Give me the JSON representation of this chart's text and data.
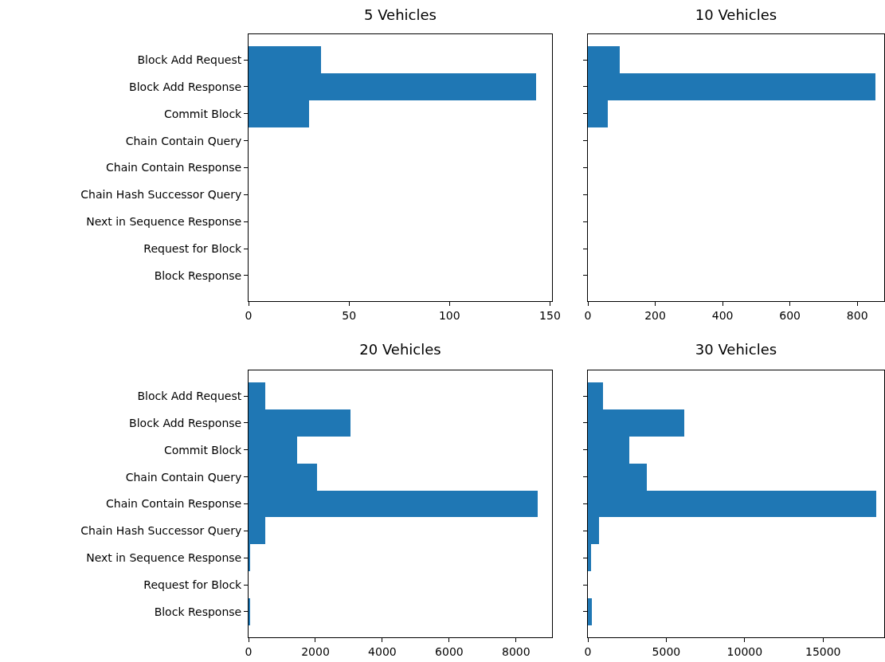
{
  "chart_data": [
    {
      "type": "bar",
      "orientation": "horizontal",
      "title": "5 Vehicles",
      "categories": [
        "Block Add Request",
        "Block Add Response",
        "Commit Block",
        "Chain Contain Query",
        "Chain Contain Response",
        "Chain Hash Successor Query",
        "Next in Sequence Response",
        "Request for Block",
        "Block Response"
      ],
      "values": [
        36,
        143,
        30,
        0,
        0,
        0,
        0,
        0,
        0
      ],
      "color": "#1f77b4",
      "xlim": [
        0,
        151
      ],
      "xticks": [
        0,
        50,
        100,
        150
      ]
    },
    {
      "type": "bar",
      "orientation": "horizontal",
      "title": "10 Vehicles",
      "categories": [
        null,
        null,
        null,
        null,
        null,
        null,
        null,
        null,
        null
      ],
      "values": [
        95,
        855,
        60,
        0,
        0,
        0,
        0,
        0,
        0
      ],
      "color": "#1f77b4",
      "xlim": [
        0,
        880
      ],
      "xticks": [
        0,
        200,
        400,
        600,
        800
      ]
    },
    {
      "type": "bar",
      "orientation": "horizontal",
      "title": "20 Vehicles",
      "categories": [
        "Block Add Request",
        "Block Add Response",
        "Commit Block",
        "Chain Contain Query",
        "Chain Contain Response",
        "Chain Hash Successor Query",
        "Next in Sequence Response",
        "Request for Block",
        "Block Response"
      ],
      "values": [
        500,
        3050,
        1450,
        2050,
        8650,
        500,
        50,
        0,
        50
      ],
      "color": "#1f77b4",
      "xlim": [
        0,
        9075
      ],
      "xticks": [
        0,
        2000,
        4000,
        6000,
        8000
      ]
    },
    {
      "type": "bar",
      "orientation": "horizontal",
      "title": "30 Vehicles",
      "categories": [
        null,
        null,
        null,
        null,
        null,
        null,
        null,
        null,
        null
      ],
      "values": [
        950,
        6150,
        2650,
        3750,
        18400,
        700,
        200,
        0,
        250
      ],
      "color": "#1f77b4",
      "xlim": [
        0,
        18900
      ],
      "xticks": [
        0,
        5000,
        10000,
        15000
      ]
    }
  ]
}
